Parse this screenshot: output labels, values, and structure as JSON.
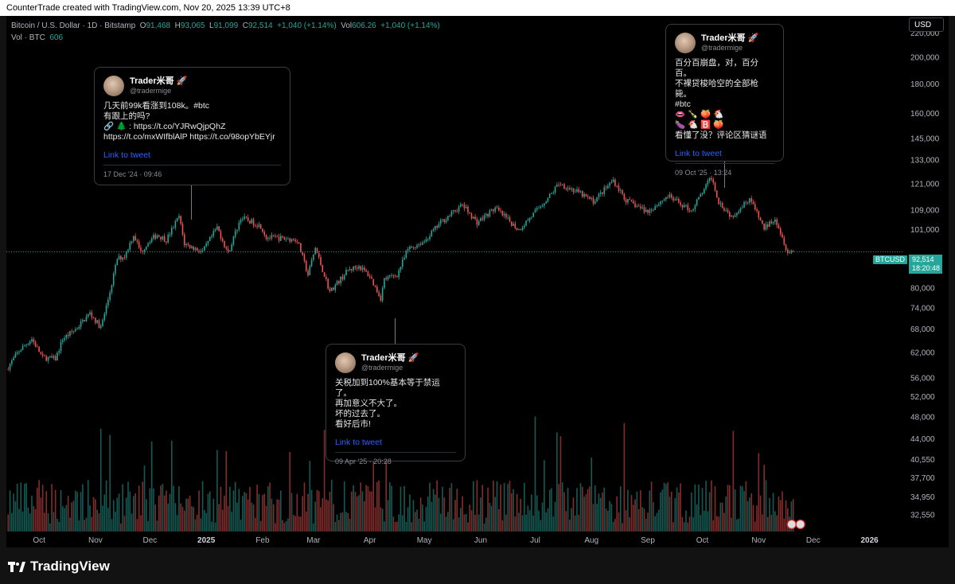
{
  "header": {
    "caption": "CounterTrade created with TradingView.com, Nov 20, 2025 13:39 UTC+8"
  },
  "legend": {
    "symbol": "Bitcoin / U.S. Dollar · 1D · Bitstamp",
    "open_label": "O",
    "open": "91,468",
    "high_label": "H",
    "high": "93,065",
    "low_label": "L",
    "low": "91,099",
    "close_label": "C",
    "close": "92,514",
    "change": "+1,040 (+1.14%)",
    "vol_label": "Vol",
    "vol": "606.26",
    "vol_change": "+1,040 (+1.14%)",
    "vol_series_label": "Vol · BTC",
    "vol_series_value": "606"
  },
  "currency": "USD",
  "price_tag": {
    "symbol": "BTCUSD",
    "price": "92,514",
    "countdown": "18:20:48"
  },
  "colors": {
    "up": "#26a69a",
    "down": "#ef5350",
    "link": "#2962ff",
    "background": "#000000"
  },
  "footer": {
    "brand": "TradingView"
  },
  "tweets": [
    {
      "name": "Trader米哥 🚀",
      "handle": "@tradermige",
      "body": "几天前99k看涨到108k。#btc\n有跟上的吗?\n🔗 🌲 : https://t.co/YJRwQjpQhZ\nhttps://t.co/mxWIfblAlP https://t.co/98opYbEYjr",
      "link": "Link to tweet",
      "date": "17 Dec '24 · 09:46"
    },
    {
      "name": "Trader米哥 🚀",
      "handle": "@tradermige",
      "body": "关税加到100%基本等于禁运了。\n再加意义不大了。\n坏的过去了。\n看好后市!",
      "link": "Link to tweet",
      "date": "09 Apr '25 · 20:28"
    },
    {
      "name": "Trader米哥 🚀",
      "handle": "@tradermige",
      "body": "百分百崩盘，对，百分百。\n不裸贷梭哈空的全部枪毙。\n#btc\n👄 🍾 🍑 🐔\n🍆 🐔 🅱️ 🍑\n看懂了没？评论区猜谜语",
      "link": "Link to tweet",
      "date": "09 Oct '25 · 13:24"
    }
  ],
  "chart_data": {
    "type": "candlestick",
    "symbol": "BTCUSD",
    "scale": "log",
    "ylim": [
      30500,
      236000
    ],
    "y_ticks": [
      32550,
      34950,
      37700,
      40550,
      44000,
      48000,
      52000,
      56000,
      62000,
      68000,
      74000,
      80000,
      86000,
      92514,
      101000,
      109000,
      121000,
      133000,
      145000,
      160000,
      180000,
      200000,
      220000
    ],
    "y_tick_labels": [
      "32,550",
      "34,950",
      "37,700",
      "40,550",
      "44,000",
      "48,000",
      "52,000",
      "56,000",
      "62,000",
      "68,000",
      "74,000",
      "80,000",
      "86,000",
      "92,514",
      "101,000",
      "109,000",
      "121,000",
      "133,000",
      "145,000",
      "160,000",
      "180,000",
      "200,000",
      "220,000"
    ],
    "x_labels": [
      "Oct",
      "Nov",
      "Dec",
      "2025",
      "Feb",
      "Mar",
      "Apr",
      "May",
      "Jun",
      "Jul",
      "Aug",
      "Sep",
      "Oct",
      "Nov",
      "Dec",
      "2026"
    ],
    "x_label_dates": [
      "2024-10-01",
      "2024-11-01",
      "2024-12-01",
      "2025-01-01",
      "2025-02-01",
      "2025-03-01",
      "2025-04-01",
      "2025-05-01",
      "2025-06-01",
      "2025-07-01",
      "2025-08-01",
      "2025-09-01",
      "2025-10-01",
      "2025-11-01",
      "2025-12-01",
      "2026-01-01"
    ],
    "x_range": [
      "2024-09-13",
      "2026-01-20"
    ],
    "last_close": 92514,
    "close_path": [
      [
        "2024-09-13",
        58000
      ],
      [
        "2024-09-20",
        62500
      ],
      [
        "2024-09-27",
        65500
      ],
      [
        "2024-10-03",
        60800
      ],
      [
        "2024-10-10",
        60500
      ],
      [
        "2024-10-14",
        65500
      ],
      [
        "2024-10-21",
        68000
      ],
      [
        "2024-10-29",
        72500
      ],
      [
        "2024-11-04",
        68500
      ],
      [
        "2024-11-08",
        76500
      ],
      [
        "2024-11-13",
        90000
      ],
      [
        "2024-11-17",
        91000
      ],
      [
        "2024-11-22",
        99000
      ],
      [
        "2024-11-26",
        92500
      ],
      [
        "2024-12-01",
        97000
      ],
      [
        "2024-12-05",
        99000
      ],
      [
        "2024-12-10",
        97000
      ],
      [
        "2024-12-17",
        106500
      ],
      [
        "2024-12-20",
        95500
      ],
      [
        "2024-12-30",
        92500
      ],
      [
        "2025-01-07",
        102000
      ],
      [
        "2025-01-13",
        92000
      ],
      [
        "2025-01-20",
        106000
      ],
      [
        "2025-01-25",
        104500
      ],
      [
        "2025-01-31",
        102500
      ],
      [
        "2025-02-03",
        98000
      ],
      [
        "2025-02-14",
        97500
      ],
      [
        "2025-02-20",
        97000
      ],
      [
        "2025-02-26",
        84500
      ],
      [
        "2025-03-02",
        94000
      ],
      [
        "2025-03-10",
        79000
      ],
      [
        "2025-03-20",
        86000
      ],
      [
        "2025-03-26",
        87500
      ],
      [
        "2025-04-01",
        84000
      ],
      [
        "2025-04-07",
        77000
      ],
      [
        "2025-04-09",
        83000
      ],
      [
        "2025-04-16",
        84500
      ],
      [
        "2025-04-22",
        93500
      ],
      [
        "2025-05-01",
        96500
      ],
      [
        "2025-05-10",
        104000
      ],
      [
        "2025-05-22",
        111500
      ],
      [
        "2025-05-30",
        104000
      ],
      [
        "2025-06-09",
        110000
      ],
      [
        "2025-06-22",
        101000
      ],
      [
        "2025-06-30",
        107500
      ],
      [
        "2025-07-10",
        116500
      ],
      [
        "2025-07-14",
        121500
      ],
      [
        "2025-07-25",
        117000
      ],
      [
        "2025-08-02",
        113000
      ],
      [
        "2025-08-13",
        123000
      ],
      [
        "2025-08-20",
        113500
      ],
      [
        "2025-09-01",
        108500
      ],
      [
        "2025-09-12",
        115500
      ],
      [
        "2025-09-25",
        109000
      ],
      [
        "2025-10-06",
        124500
      ],
      [
        "2025-10-10",
        113000
      ],
      [
        "2025-10-17",
        106500
      ],
      [
        "2025-10-27",
        114500
      ],
      [
        "2025-11-04",
        101500
      ],
      [
        "2025-11-10",
        106000
      ],
      [
        "2025-11-17",
        92500
      ],
      [
        "2025-11-20",
        92514
      ]
    ]
  }
}
